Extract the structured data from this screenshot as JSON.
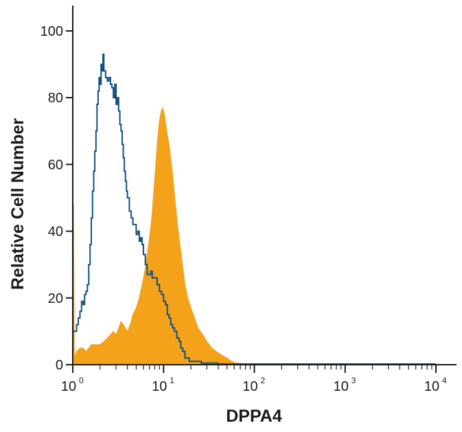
{
  "chart_data": {
    "type": "area",
    "xlabel": "DPPA4",
    "ylabel": "Relative Cell Number",
    "x_scale": "log",
    "xlim": [
      1,
      10000
    ],
    "ylim": [
      0,
      100
    ],
    "x_ticks": [
      {
        "base": "10",
        "exp": "0",
        "value": 1
      },
      {
        "base": "10",
        "exp": "1",
        "value": 10
      },
      {
        "base": "10",
        "exp": "2",
        "value": 100
      },
      {
        "base": "10",
        "exp": "3",
        "value": 1000
      },
      {
        "base": "10",
        "exp": "4",
        "value": 10000
      }
    ],
    "y_ticks": [
      "0",
      "20",
      "40",
      "60",
      "80",
      "100"
    ],
    "grid": false,
    "legend": "none",
    "colors": {
      "filled": "#f5a21b",
      "outline": "#12507e",
      "axis": "#1a1a1a"
    },
    "series": [
      {
        "style": "filled-histogram",
        "points": [
          [
            1.0,
            0
          ],
          [
            1.02,
            48
          ],
          [
            1.04,
            2
          ],
          [
            1.1,
            4
          ],
          [
            1.2,
            5
          ],
          [
            1.3,
            5
          ],
          [
            1.4,
            4
          ],
          [
            1.5,
            5
          ],
          [
            1.6,
            6
          ],
          [
            1.8,
            6
          ],
          [
            2.0,
            6
          ],
          [
            2.2,
            7
          ],
          [
            2.4,
            8
          ],
          [
            2.6,
            9
          ],
          [
            2.8,
            10
          ],
          [
            3.0,
            9
          ],
          [
            3.2,
            11
          ],
          [
            3.4,
            13
          ],
          [
            3.6,
            12
          ],
          [
            3.8,
            11
          ],
          [
            4.0,
            10
          ],
          [
            4.3,
            12
          ],
          [
            4.6,
            15
          ],
          [
            5.0,
            17
          ],
          [
            5.4,
            20
          ],
          [
            5.8,
            24
          ],
          [
            6.2,
            28
          ],
          [
            6.6,
            33
          ],
          [
            7.0,
            38
          ],
          [
            7.4,
            44
          ],
          [
            7.8,
            52
          ],
          [
            8.2,
            60
          ],
          [
            8.6,
            68
          ],
          [
            9.0,
            73
          ],
          [
            9.4,
            76
          ],
          [
            9.8,
            77
          ],
          [
            10.2,
            75
          ],
          [
            10.6,
            72
          ],
          [
            11.0,
            69
          ],
          [
            11.5,
            66
          ],
          [
            12.0,
            62
          ],
          [
            12.6,
            57
          ],
          [
            13.2,
            51
          ],
          [
            14.0,
            44
          ],
          [
            15.0,
            37
          ],
          [
            16.0,
            31
          ],
          [
            17.0,
            25
          ],
          [
            18.5,
            20
          ],
          [
            20.0,
            17
          ],
          [
            22.0,
            14
          ],
          [
            24.0,
            11
          ],
          [
            27.0,
            9
          ],
          [
            30.0,
            7
          ],
          [
            34.0,
            5
          ],
          [
            38.0,
            4
          ],
          [
            43.0,
            3
          ],
          [
            50.0,
            2
          ],
          [
            56.0,
            1
          ],
          [
            63.0,
            0.5
          ],
          [
            75.0,
            0.3
          ],
          [
            100,
            0.2
          ],
          [
            300,
            0.2
          ],
          [
            1000,
            0.2
          ],
          [
            10000,
            0.2
          ]
        ]
      },
      {
        "style": "outline-histogram",
        "points": [
          [
            1.0,
            10
          ],
          [
            1.05,
            10
          ],
          [
            1.1,
            12
          ],
          [
            1.15,
            14
          ],
          [
            1.2,
            16
          ],
          [
            1.25,
            19
          ],
          [
            1.3,
            18
          ],
          [
            1.35,
            21
          ],
          [
            1.4,
            22
          ],
          [
            1.45,
            24
          ],
          [
            1.5,
            30
          ],
          [
            1.55,
            36
          ],
          [
            1.6,
            44
          ],
          [
            1.65,
            52
          ],
          [
            1.7,
            58
          ],
          [
            1.75,
            64
          ],
          [
            1.8,
            70
          ],
          [
            1.85,
            78
          ],
          [
            1.9,
            82
          ],
          [
            1.95,
            86
          ],
          [
            2.0,
            84
          ],
          [
            2.05,
            90
          ],
          [
            2.1,
            88
          ],
          [
            2.15,
            93
          ],
          [
            2.2,
            88
          ],
          [
            2.3,
            86
          ],
          [
            2.4,
            85
          ],
          [
            2.5,
            86
          ],
          [
            2.6,
            84
          ],
          [
            2.7,
            83
          ],
          [
            2.8,
            80
          ],
          [
            2.9,
            84
          ],
          [
            3.0,
            78
          ],
          [
            3.1,
            80
          ],
          [
            3.2,
            76
          ],
          [
            3.3,
            72
          ],
          [
            3.4,
            70
          ],
          [
            3.5,
            66
          ],
          [
            3.6,
            62
          ],
          [
            3.7,
            58
          ],
          [
            3.8,
            55
          ],
          [
            3.9,
            52
          ],
          [
            4.0,
            50
          ],
          [
            4.2,
            46
          ],
          [
            4.4,
            44
          ],
          [
            4.6,
            42
          ],
          [
            4.8,
            42
          ],
          [
            5.0,
            39
          ],
          [
            5.2,
            40
          ],
          [
            5.4,
            37
          ],
          [
            5.6,
            38
          ],
          [
            5.8,
            36
          ],
          [
            6.0,
            33
          ],
          [
            6.3,
            30
          ],
          [
            6.6,
            27
          ],
          [
            6.9,
            27
          ],
          [
            7.2,
            28
          ],
          [
            7.5,
            26
          ],
          [
            7.8,
            26
          ],
          [
            8.1,
            26
          ],
          [
            8.5,
            24
          ],
          [
            9.0,
            22
          ],
          [
            9.5,
            21
          ],
          [
            10.0,
            19
          ],
          [
            10.5,
            18
          ],
          [
            11.0,
            15
          ],
          [
            11.5,
            14
          ],
          [
            12.0,
            12
          ],
          [
            12.6,
            11
          ],
          [
            13.2,
            10
          ],
          [
            14.0,
            8
          ],
          [
            14.8,
            7
          ],
          [
            15.5,
            5
          ],
          [
            16.3,
            4
          ],
          [
            17.2,
            2
          ],
          [
            18.2,
            2
          ],
          [
            19.2,
            1
          ],
          [
            20.4,
            1
          ],
          [
            22.0,
            1
          ],
          [
            24.0,
            1
          ],
          [
            26.0,
            0.5
          ],
          [
            29.0,
            0.5
          ],
          [
            33.0,
            0.5
          ],
          [
            40.0,
            0.2
          ],
          [
            60.0,
            0.2
          ],
          [
            100,
            0.2
          ],
          [
            1000,
            0.2
          ],
          [
            10000,
            0.2
          ]
        ]
      }
    ]
  }
}
